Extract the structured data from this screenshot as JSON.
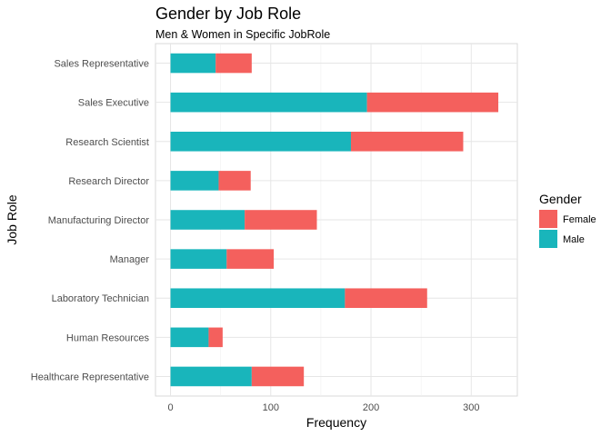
{
  "chart_data": {
    "type": "bar",
    "orientation": "horizontal",
    "stacked": true,
    "title": "Gender by Job Role",
    "subtitle": "Men & Women in Specific JobRole",
    "xlabel": "Frequency",
    "ylabel": "Job Role",
    "xlim": [
      -15,
      346
    ],
    "xticks": [
      0,
      100,
      200,
      300
    ],
    "grid": true,
    "legend": {
      "title": "Gender",
      "placement": "right"
    },
    "categories": [
      "Healthcare Representative",
      "Human Resources",
      "Laboratory Technician",
      "Manager",
      "Manufacturing Director",
      "Research Director",
      "Research Scientist",
      "Sales Executive",
      "Sales Representative"
    ],
    "series": [
      {
        "name": "Male",
        "color": "#19b5bb",
        "values": [
          81,
          38,
          174,
          56,
          74,
          48,
          180,
          196,
          45
        ]
      },
      {
        "name": "Female",
        "color": "#f4605d",
        "values": [
          52,
          14,
          82,
          47,
          72,
          32,
          112,
          131,
          36
        ]
      }
    ],
    "legend_order": [
      "Female",
      "Male"
    ]
  }
}
